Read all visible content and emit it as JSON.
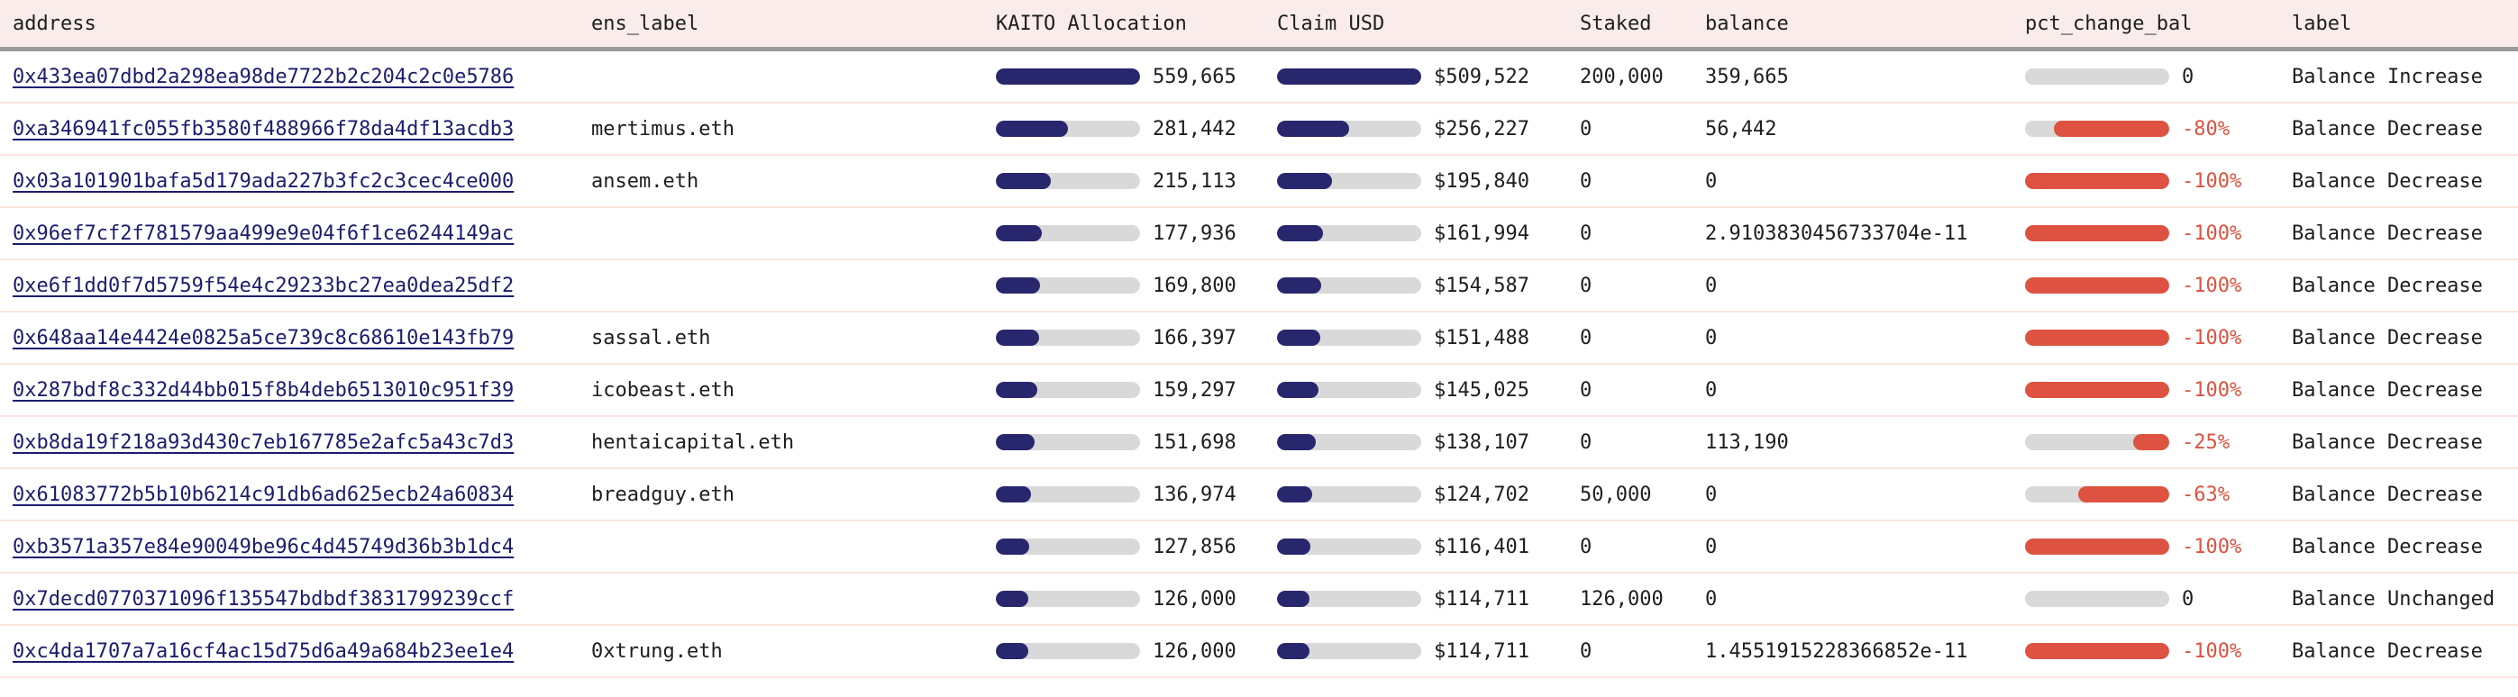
{
  "header": {
    "columns": [
      {
        "key": "address",
        "label": "address"
      },
      {
        "key": "ens_label",
        "label": "ens_label"
      },
      {
        "key": "kaito",
        "label": "KAITO Allocation"
      },
      {
        "key": "claim",
        "label": "Claim USD"
      },
      {
        "key": "staked",
        "label": "Staked"
      },
      {
        "key": "balance",
        "label": "balance"
      },
      {
        "key": "pct_change_bal",
        "label": "pct_change_bal"
      },
      {
        "key": "label",
        "label": "label"
      }
    ]
  },
  "bars": {
    "kaito_max": 559665,
    "claim_max": 509522
  },
  "colors": {
    "navy": "#28276d",
    "red": "#dd5240",
    "track": "#d9d9d9",
    "header_bg": "#faeceb",
    "divider": "#fae5e0",
    "header_border": "#9b9b9b",
    "link": "#1d1c6e",
    "text": "#1e1e1e"
  },
  "rows": [
    {
      "address": "0x433ea07dbd2a298ea98de7722b2c204c2c0e5786",
      "ens_label": "",
      "kaito_display": "559,665",
      "kaito_value": 559665,
      "claim_display": "$509,522",
      "claim_value": 509522,
      "staked": "200,000",
      "balance": "359,665",
      "pct_display": "0",
      "pct_value": 0,
      "label": "Balance Increase"
    },
    {
      "address": "0xa346941fc055fb3580f488966f78da4df13acdb3",
      "ens_label": "mertimus.eth",
      "kaito_display": "281,442",
      "kaito_value": 281442,
      "claim_display": "$256,227",
      "claim_value": 256227,
      "staked": "0",
      "balance": "56,442",
      "pct_display": "-80%",
      "pct_value": -80,
      "label": "Balance Decrease"
    },
    {
      "address": "0x03a101901bafa5d179ada227b3fc2c3cec4ce000",
      "ens_label": "ansem.eth",
      "kaito_display": "215,113",
      "kaito_value": 215113,
      "claim_display": "$195,840",
      "claim_value": 195840,
      "staked": "0",
      "balance": "0",
      "pct_display": "-100%",
      "pct_value": -100,
      "label": "Balance Decrease"
    },
    {
      "address": "0x96ef7cf2f781579aa499e9e04f6f1ce6244149ac",
      "ens_label": "",
      "kaito_display": "177,936",
      "kaito_value": 177936,
      "claim_display": "$161,994",
      "claim_value": 161994,
      "staked": "0",
      "balance": "2.9103830456733704e-11",
      "pct_display": "-100%",
      "pct_value": -100,
      "label": "Balance Decrease"
    },
    {
      "address": "0xe6f1dd0f7d5759f54e4c29233bc27ea0dea25df2",
      "ens_label": "",
      "kaito_display": "169,800",
      "kaito_value": 169800,
      "claim_display": "$154,587",
      "claim_value": 154587,
      "staked": "0",
      "balance": "0",
      "pct_display": "-100%",
      "pct_value": -100,
      "label": "Balance Decrease"
    },
    {
      "address": "0x648aa14e4424e0825a5ce739c8c68610e143fb79",
      "ens_label": "sassal.eth",
      "kaito_display": "166,397",
      "kaito_value": 166397,
      "claim_display": "$151,488",
      "claim_value": 151488,
      "staked": "0",
      "balance": "0",
      "pct_display": "-100%",
      "pct_value": -100,
      "label": "Balance Decrease"
    },
    {
      "address": "0x287bdf8c332d44bb015f8b4deb6513010c951f39",
      "ens_label": "icobeast.eth",
      "kaito_display": "159,297",
      "kaito_value": 159297,
      "claim_display": "$145,025",
      "claim_value": 145025,
      "staked": "0",
      "balance": "0",
      "pct_display": "-100%",
      "pct_value": -100,
      "label": "Balance Decrease"
    },
    {
      "address": "0xb8da19f218a93d430c7eb167785e2afc5a43c7d3",
      "ens_label": "hentaicapital.eth",
      "kaito_display": "151,698",
      "kaito_value": 151698,
      "claim_display": "$138,107",
      "claim_value": 138107,
      "staked": "0",
      "balance": "113,190",
      "pct_display": "-25%",
      "pct_value": -25,
      "label": "Balance Decrease"
    },
    {
      "address": "0x61083772b5b10b6214c91db6ad625ecb24a60834",
      "ens_label": "breadguy.eth",
      "kaito_display": "136,974",
      "kaito_value": 136974,
      "claim_display": "$124,702",
      "claim_value": 124702,
      "staked": "50,000",
      "balance": "0",
      "pct_display": "-63%",
      "pct_value": -63,
      "label": "Balance Decrease"
    },
    {
      "address": "0xb3571a357e84e90049be96c4d45749d36b3b1dc4",
      "ens_label": "",
      "kaito_display": "127,856",
      "kaito_value": 127856,
      "claim_display": "$116,401",
      "claim_value": 116401,
      "staked": "0",
      "balance": "0",
      "pct_display": "-100%",
      "pct_value": -100,
      "label": "Balance Decrease"
    },
    {
      "address": "0x7decd0770371096f135547bdbdf3831799239ccf",
      "ens_label": "",
      "kaito_display": "126,000",
      "kaito_value": 126000,
      "claim_display": "$114,711",
      "claim_value": 114711,
      "staked": "126,000",
      "balance": "0",
      "pct_display": "0",
      "pct_value": 0,
      "label": "Balance Unchanged"
    },
    {
      "address": "0xc4da1707a7a16cf4ac15d75d6a49a684b23ee1e4",
      "ens_label": "0xtrung.eth",
      "kaito_display": "126,000",
      "kaito_value": 126000,
      "claim_display": "$114,711",
      "claim_value": 114711,
      "staked": "0",
      "balance": "1.4551915228366852e-11",
      "pct_display": "-100%",
      "pct_value": -100,
      "label": "Balance Decrease"
    }
  ]
}
